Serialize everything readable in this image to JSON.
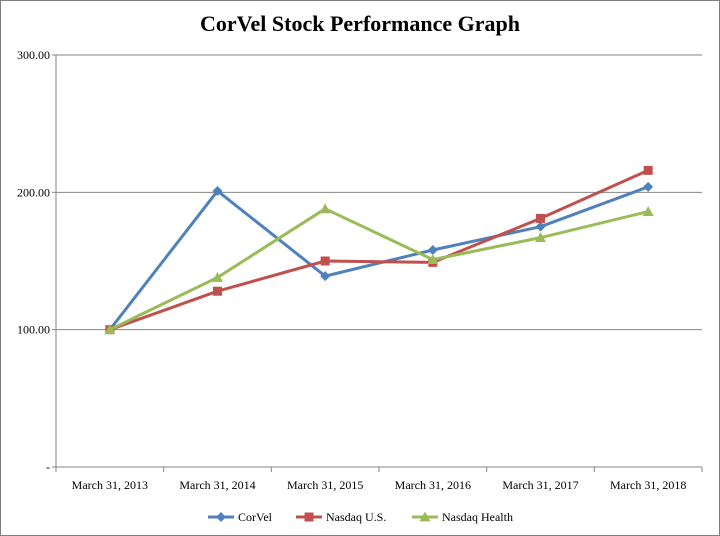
{
  "chart_data": {
    "type": "line",
    "title": "CorVel Stock Performance Graph",
    "xlabel": "",
    "ylabel": "",
    "categories": [
      "March 31, 2013",
      "March 31, 2014",
      "March 31, 2015",
      "March 31, 2016",
      "March 31, 2017",
      "March 31, 2018"
    ],
    "y_ticks": [
      "-",
      "100.00",
      "200.00",
      "300.00"
    ],
    "ylim": [
      0,
      300
    ],
    "grid": "horizontal",
    "legend_position": "bottom",
    "series": [
      {
        "name": "CorVel",
        "color": "#4f81bd",
        "marker": "diamond",
        "values": [
          100,
          201,
          139,
          158,
          175,
          204
        ]
      },
      {
        "name": "Nasdaq U.S.",
        "color": "#c0504d",
        "marker": "square",
        "values": [
          100,
          128,
          150,
          149,
          181,
          216
        ]
      },
      {
        "name": "Nasdaq Health",
        "color": "#9bbb59",
        "marker": "triangle",
        "values": [
          100,
          138,
          188,
          151,
          167,
          186
        ]
      }
    ]
  }
}
